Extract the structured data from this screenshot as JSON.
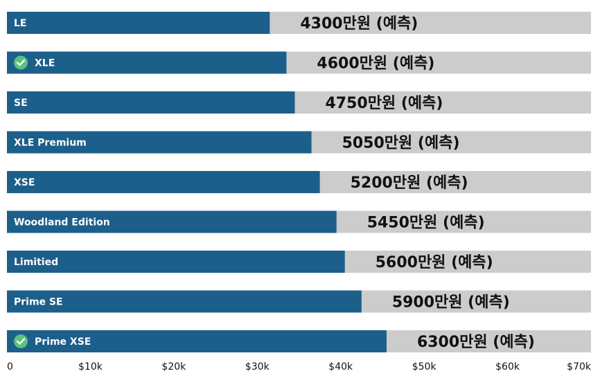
{
  "colors": {
    "fill": "#1d5f8b",
    "track": "#cccccc",
    "check_badge": "#5bc17f"
  },
  "chart_data": {
    "type": "bar",
    "orientation": "horizontal",
    "categories": [
      "LE",
      "XLE",
      "SE",
      "XLE Premium",
      "XSE",
      "Woodland Edition",
      "Limitied",
      "Prime SE",
      "Prime XSE"
    ],
    "values": [
      31500,
      33500,
      34500,
      36500,
      37500,
      39500,
      40500,
      42500,
      45500
    ],
    "value_labels": [
      "4300만원 (예측)",
      "4600만원 (예측)",
      "4750만원 (예측)",
      "5050만원 (예측)",
      "5200만원 (예측)",
      "5450만원 (예측)",
      "5600만원 (예측)",
      "5900만원 (예측)",
      "6300만원 (예측)"
    ],
    "check_icon": [
      false,
      true,
      false,
      false,
      false,
      false,
      false,
      false,
      true
    ],
    "check_icon_name": "check-circle-icon",
    "xlim": [
      0,
      70000
    ],
    "x_ticks": [
      0,
      10000,
      20000,
      30000,
      40000,
      50000,
      60000,
      70000
    ],
    "x_tick_labels": [
      "0",
      "$10k",
      "$20k",
      "$30k",
      "$40k",
      "$50k",
      "$60k",
      "$70k"
    ],
    "title": "",
    "xlabel": "",
    "ylabel": "",
    "grid": false,
    "legend": "none"
  }
}
